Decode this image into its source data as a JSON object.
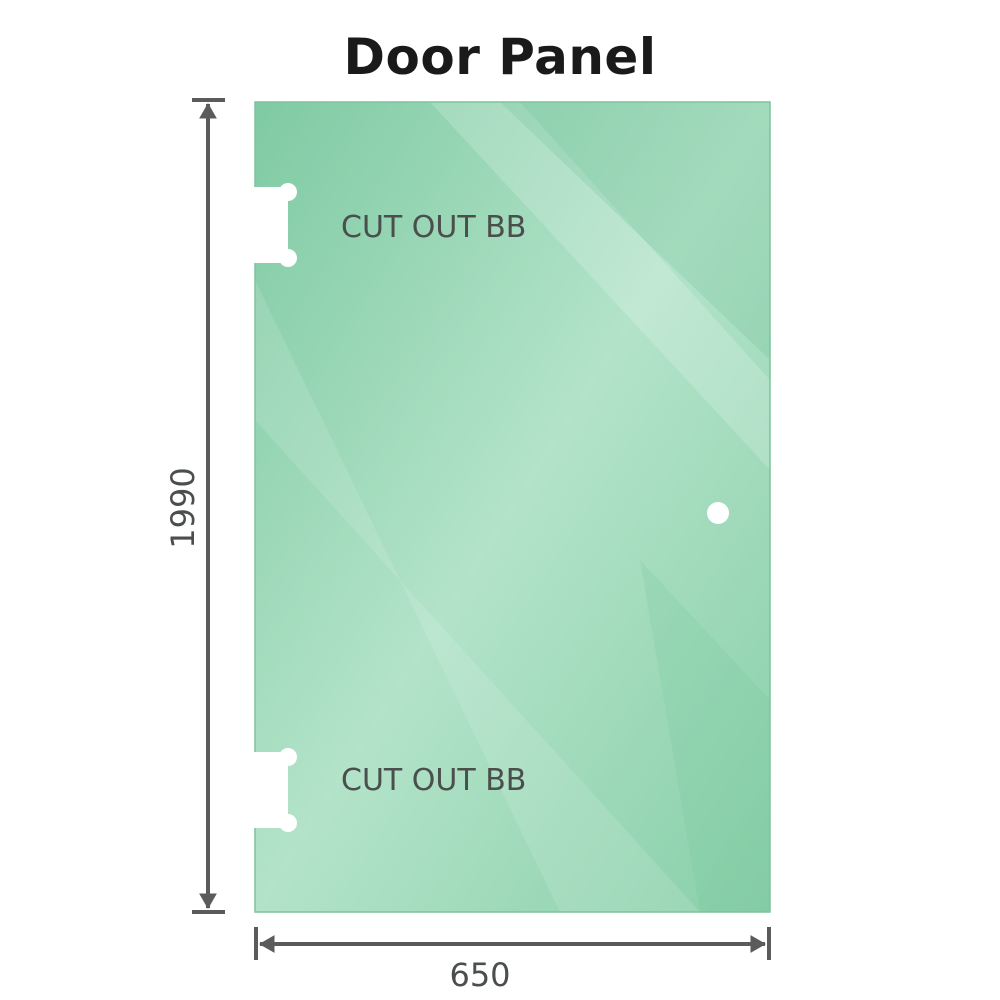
{
  "title": "Door Panel",
  "panel": {
    "cutout_top_label": "CUT OUT BB",
    "cutout_bottom_label": "CUT OUT BB",
    "glass_color": "#8fd3b0"
  },
  "dimensions": {
    "height_label": "1990",
    "width_label": "650",
    "line_color": "#5b5b5b"
  }
}
